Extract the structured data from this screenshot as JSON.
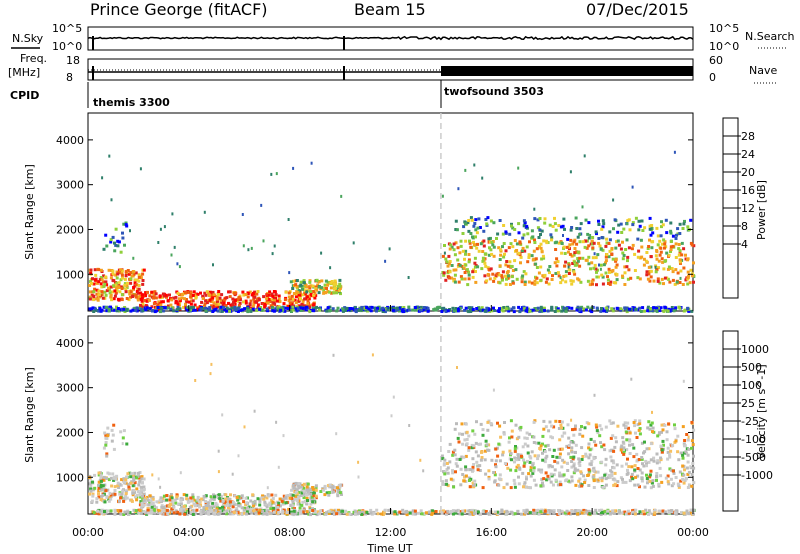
{
  "header": {
    "station": "Prince George (fitACF)",
    "beam": "Beam 15",
    "date": "07/Dec/2015"
  },
  "left_labels": {
    "nsky": "N.Sky",
    "freq_line1": "Freq.",
    "freq_line2": "[MHz]",
    "cpid": "CPID"
  },
  "right_labels": {
    "nsearch": "N.Search",
    "nave": "Nave"
  },
  "panels_top": {
    "noise_ticks_left": [
      "10^5",
      "10^0"
    ],
    "noise_ticks_right": [
      "10^5",
      "10^0"
    ],
    "freq_ticks_left": [
      "18",
      "8"
    ],
    "nave_ticks_right": [
      "60",
      "0"
    ],
    "cpid_segments": [
      {
        "name": "themis 3300",
        "start_hour": 0,
        "end_hour": 14
      },
      {
        "name": "twofsound 3503",
        "start_hour": 14,
        "end_hour": 24
      }
    ]
  },
  "chart_data": [
    {
      "type": "heatmap",
      "title": "Power",
      "ylabel": "Slant Range [km]",
      "xlim_hours": [
        0,
        24
      ],
      "ylim_km": [
        180,
        4600
      ],
      "yticks": [
        1000,
        2000,
        3000,
        4000
      ],
      "colorbar": {
        "label": "Power [dB]",
        "ticks": [
          "28",
          "24",
          "20",
          "16",
          "12",
          "8",
          "4"
        ],
        "colors": [
          "#0000ff",
          "#2e55b8",
          "#2f7f6a",
          "#4aa55c",
          "#8fcf3a",
          "#f0d030",
          "#f4a020",
          "#f06010",
          "#e02020",
          "#ff0000"
        ]
      },
      "features": [
        {
          "hours": [
            0,
            2.2
          ],
          "range_km": [
            500,
            1100
          ],
          "level": "high"
        },
        {
          "hours": [
            2,
            9
          ],
          "range_km": [
            250,
            650
          ],
          "level": "high"
        },
        {
          "hours": [
            8,
            10
          ],
          "range_km": [
            600,
            900
          ],
          "level": "mid"
        },
        {
          "hours": [
            14,
            24
          ],
          "range_km": [
            800,
            2200
          ],
          "level": "mid-high"
        }
      ]
    },
    {
      "type": "heatmap",
      "title": "Velocity",
      "ylabel": "Slant Range [km]",
      "xlabel": "Time UT",
      "xlim_hours": [
        0,
        24
      ],
      "ylim_km": [
        180,
        4600
      ],
      "yticks": [
        1000,
        2000,
        3000,
        4000
      ],
      "xticks": [
        "00:00",
        "04:00",
        "08:00",
        "12:00",
        "16:00",
        "20:00",
        "00:00"
      ],
      "colorbar": {
        "label": "Velocity [m s^-1]",
        "ticks": [
          "1000",
          "500",
          "100",
          "25",
          "-25",
          "-100",
          "-500",
          "-1000"
        ],
        "colors": [
          "#ff0000",
          "#f06010",
          "#f4a020",
          "#f6c060",
          "#cccccc",
          "#bbbbbb",
          "#6fd040",
          "#3caa3c",
          "#2f6fb0",
          "#1e3ea8"
        ]
      }
    }
  ]
}
